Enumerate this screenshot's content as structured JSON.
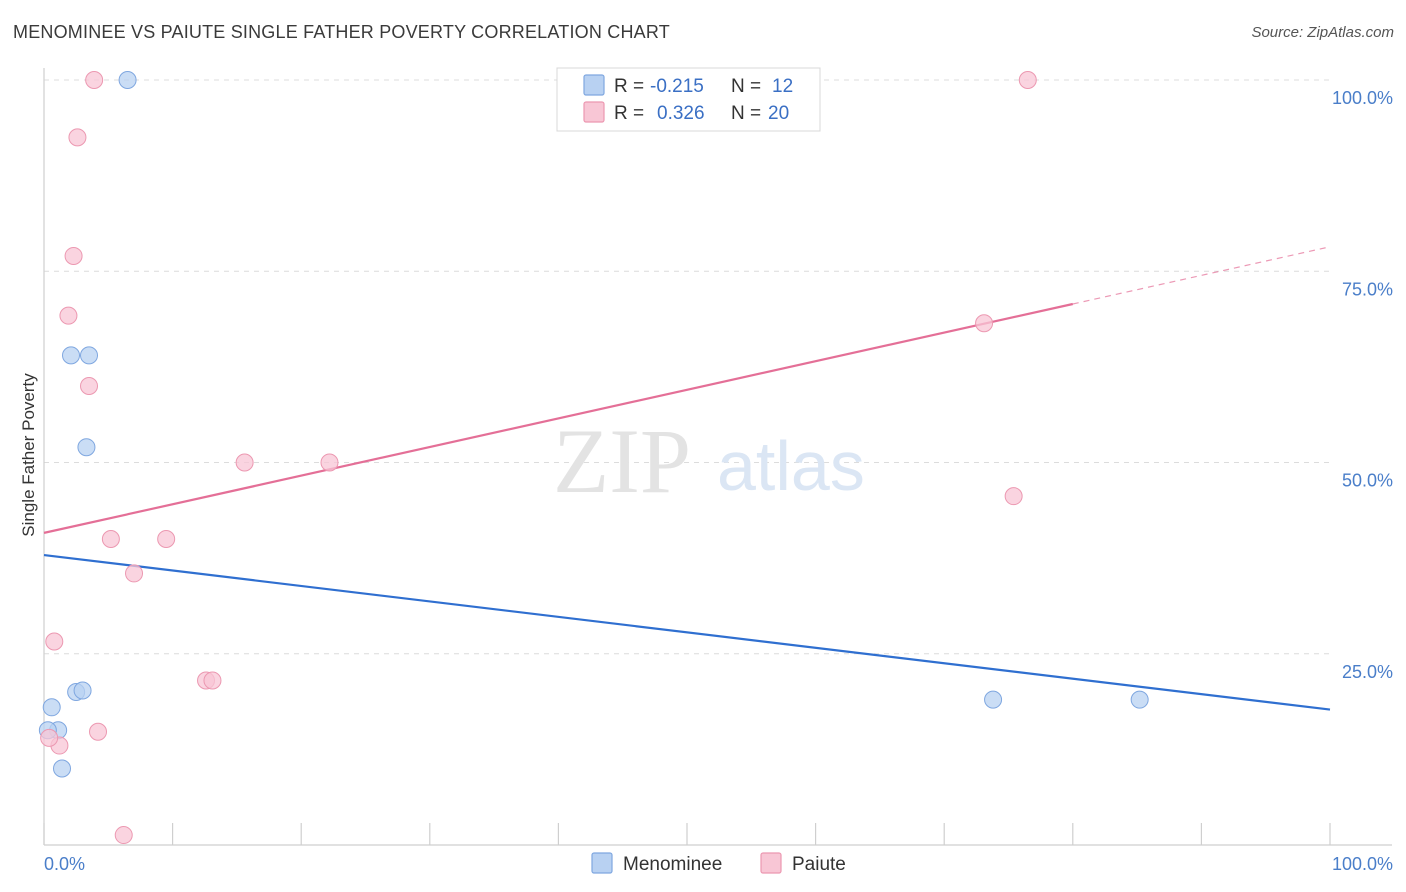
{
  "header": {
    "title": "MENOMINEE VS PAIUTE SINGLE FATHER POVERTY CORRELATION CHART",
    "source": "Source: ZipAtlas.com"
  },
  "colors": {
    "menominee_fill": "#b8d1f2",
    "menominee_stroke": "#7fa7e0",
    "menominee_line": "#2f6fd0",
    "paiute_fill": "#f8c6d5",
    "paiute_stroke": "#ec98b1",
    "paiute_line": "#e46f97",
    "tick_label": "#4a7ec9"
  },
  "legend_box": {
    "row1": {
      "r_label": "R = ",
      "r_value": "-0.215",
      "n_label": "N = ",
      "n_value": "12"
    },
    "row2": {
      "r_label": "R = ",
      "r_value": "0.326",
      "n_label": "N = ",
      "n_value": "20"
    }
  },
  "watermark": {
    "zip": "ZIP",
    "atlas": "atlas"
  },
  "chart_data": {
    "type": "scatter",
    "title": "MENOMINEE VS PAIUTE SINGLE FATHER POVERTY CORRELATION CHART",
    "xlabel": "",
    "ylabel": "Single Father Poverty",
    "xlim": [
      0,
      100
    ],
    "ylim": [
      0,
      100
    ],
    "x_tick_labels": [
      "0.0%",
      "100.0%"
    ],
    "y_tick_labels": [
      {
        "value": 25,
        "label": "25.0%"
      },
      {
        "value": 50,
        "label": "50.0%"
      },
      {
        "value": 75,
        "label": "75.0%"
      },
      {
        "value": 100,
        "label": "100.0%"
      }
    ],
    "grid": true,
    "legend_position": "bottom-center",
    "series": [
      {
        "name": "Menominee",
        "r": -0.215,
        "n": 12,
        "points": [
          {
            "x": 6.5,
            "y": 100
          },
          {
            "x": 2.1,
            "y": 64
          },
          {
            "x": 3.5,
            "y": 64
          },
          {
            "x": 3.3,
            "y": 52
          },
          {
            "x": 2.5,
            "y": 20
          },
          {
            "x": 3.0,
            "y": 20.2
          },
          {
            "x": 0.6,
            "y": 18
          },
          {
            "x": 1.1,
            "y": 15
          },
          {
            "x": 0.3,
            "y": 15
          },
          {
            "x": 1.4,
            "y": 10
          },
          {
            "x": 73.8,
            "y": 19
          },
          {
            "x": 85.2,
            "y": 19
          }
        ],
        "trend": {
          "x0": 0,
          "y0": 37.9,
          "x1": 100,
          "y1": 17.7,
          "dashed_from": null
        }
      },
      {
        "name": "Paiute",
        "r": 0.326,
        "n": 20,
        "points": [
          {
            "x": 3.9,
            "y": 100
          },
          {
            "x": 76.5,
            "y": 100
          },
          {
            "x": 2.6,
            "y": 92.5
          },
          {
            "x": 2.3,
            "y": 77
          },
          {
            "x": 1.9,
            "y": 69.2
          },
          {
            "x": 73.1,
            "y": 68.2
          },
          {
            "x": 3.5,
            "y": 60
          },
          {
            "x": 15.6,
            "y": 50
          },
          {
            "x": 22.2,
            "y": 50
          },
          {
            "x": 75.4,
            "y": 45.6
          },
          {
            "x": 5.2,
            "y": 40
          },
          {
            "x": 9.5,
            "y": 40
          },
          {
            "x": 7.0,
            "y": 35.5
          },
          {
            "x": 0.8,
            "y": 26.6
          },
          {
            "x": 12.6,
            "y": 21.5
          },
          {
            "x": 13.1,
            "y": 21.5
          },
          {
            "x": 4.2,
            "y": 14.8
          },
          {
            "x": 1.2,
            "y": 13
          },
          {
            "x": 0.4,
            "y": 14
          },
          {
            "x": 6.2,
            "y": 1.3
          }
        ],
        "trend": {
          "x0": 0,
          "y0": 40.8,
          "x1": 100,
          "y1": 78.2,
          "dashed_from": 80
        }
      }
    ]
  }
}
